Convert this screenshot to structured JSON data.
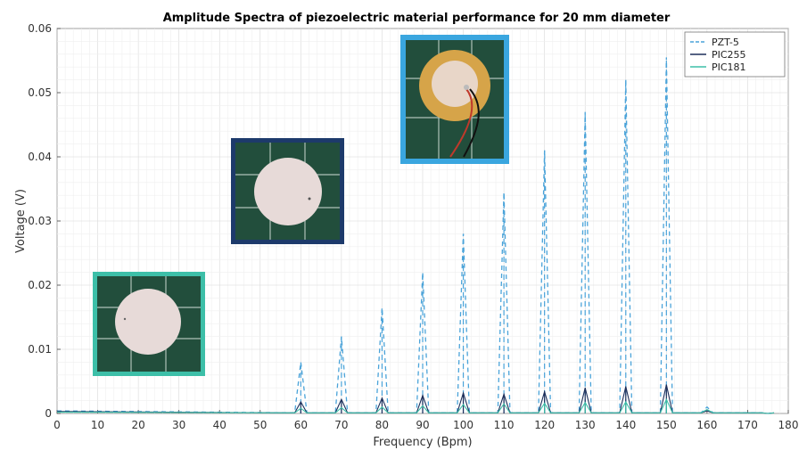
{
  "chart_data": {
    "type": "line",
    "title": "Amplitude Spectra of piezoelectric material performance for 20 mm diameter",
    "xlabel": "Frequency (Bpm)",
    "ylabel": "Voltage (V)",
    "xlim": [
      0,
      180
    ],
    "ylim": [
      0,
      0.06
    ],
    "xticks": [
      "0",
      "10",
      "20",
      "30",
      "40",
      "50",
      "60",
      "70",
      "80",
      "90",
      "100",
      "110",
      "120",
      "130",
      "140",
      "150",
      "160",
      "170",
      "180"
    ],
    "yticks": [
      "0",
      "0.01",
      "0.02",
      "0.03",
      "0.04",
      "0.05",
      "0.06"
    ],
    "grid": true,
    "legend_position": "top-right",
    "series": [
      {
        "name": "PZT-5",
        "color": "#4aa3d9",
        "style": "dashed",
        "x": [
          0,
          60,
          70,
          80,
          90,
          100,
          110,
          120,
          130,
          140,
          150,
          160,
          175
        ],
        "values": [
          0.0004,
          0.008,
          0.012,
          0.0165,
          0.022,
          0.028,
          0.0345,
          0.041,
          0.047,
          0.052,
          0.0555,
          0.001,
          0.0
        ]
      },
      {
        "name": "PIC255",
        "color": "#1d2f5a",
        "style": "solid",
        "x": [
          0,
          60,
          70,
          80,
          90,
          100,
          110,
          120,
          130,
          140,
          150,
          160,
          175
        ],
        "values": [
          0.0003,
          0.0018,
          0.0022,
          0.0024,
          0.0028,
          0.0032,
          0.003,
          0.0034,
          0.004,
          0.0042,
          0.0045,
          0.0004,
          0.0
        ]
      },
      {
        "name": "PIC181",
        "color": "#3dbfa8",
        "style": "solid",
        "x": [
          0,
          60,
          70,
          80,
          90,
          100,
          110,
          120,
          130,
          140,
          150,
          160,
          175
        ],
        "values": [
          0.0002,
          0.0008,
          0.0009,
          0.001,
          0.0012,
          0.0014,
          0.0015,
          0.0016,
          0.0017,
          0.0018,
          0.0022,
          0.0006,
          0.0
        ]
      }
    ]
  },
  "insets": [
    {
      "name": "PIC181-sample-photo",
      "border_color": "#3dbfa8"
    },
    {
      "name": "PIC255-sample-photo",
      "border_color": "#1d3a6b"
    },
    {
      "name": "PZT-5-sample-photo",
      "border_color": "#3aa6df"
    }
  ]
}
